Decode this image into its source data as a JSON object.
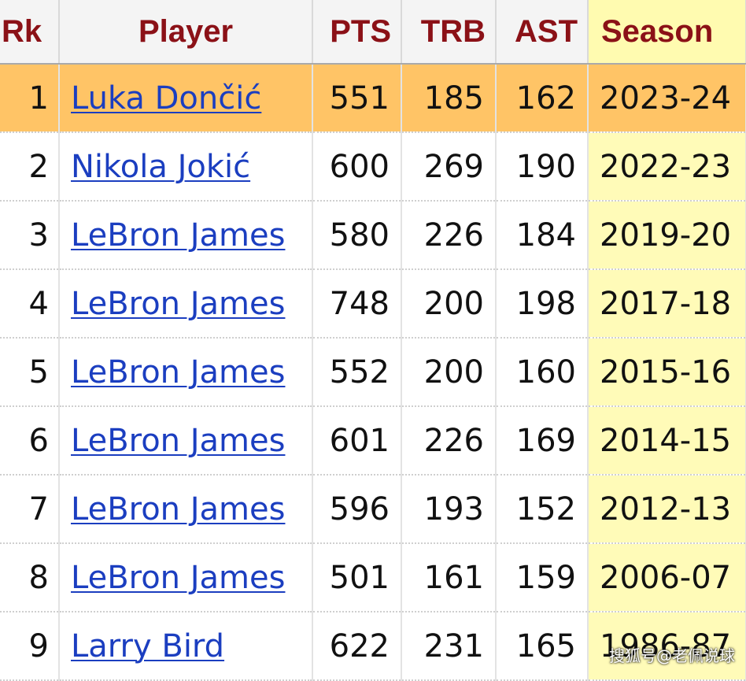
{
  "table": {
    "headers": {
      "rk": "Rk",
      "player": "Player",
      "pts": "PTS",
      "trb": "TRB",
      "ast": "AST",
      "season": "Season"
    },
    "rows": [
      {
        "rk": "1",
        "player": "Luka Dončić",
        "pts": "551",
        "trb": "185",
        "ast": "162",
        "season": "2023-24",
        "highlighted": true
      },
      {
        "rk": "2",
        "player": "Nikola Jokić",
        "pts": "600",
        "trb": "269",
        "ast": "190",
        "season": "2022-23"
      },
      {
        "rk": "3",
        "player": "LeBron James",
        "pts": "580",
        "trb": "226",
        "ast": "184",
        "season": "2019-20"
      },
      {
        "rk": "4",
        "player": "LeBron James",
        "pts": "748",
        "trb": "200",
        "ast": "198",
        "season": "2017-18"
      },
      {
        "rk": "5",
        "player": "LeBron James",
        "pts": "552",
        "trb": "200",
        "ast": "160",
        "season": "2015-16"
      },
      {
        "rk": "6",
        "player": "LeBron James",
        "pts": "601",
        "trb": "226",
        "ast": "169",
        "season": "2014-15"
      },
      {
        "rk": "7",
        "player": "LeBron James",
        "pts": "596",
        "trb": "193",
        "ast": "152",
        "season": "2012-13"
      },
      {
        "rk": "8",
        "player": "LeBron James",
        "pts": "501",
        "trb": "161",
        "ast": "159",
        "season": "2006-07"
      },
      {
        "rk": "9",
        "player": "Larry Bird",
        "pts": "622",
        "trb": "231",
        "ast": "165",
        "season": "1986-87"
      }
    ]
  },
  "watermark": "搜狐号@老佩说球",
  "colors": {
    "header_text": "#8b1117",
    "link": "#1b3ec0",
    "highlight_row": "#ffc466",
    "season_column": "#fffbb8"
  }
}
